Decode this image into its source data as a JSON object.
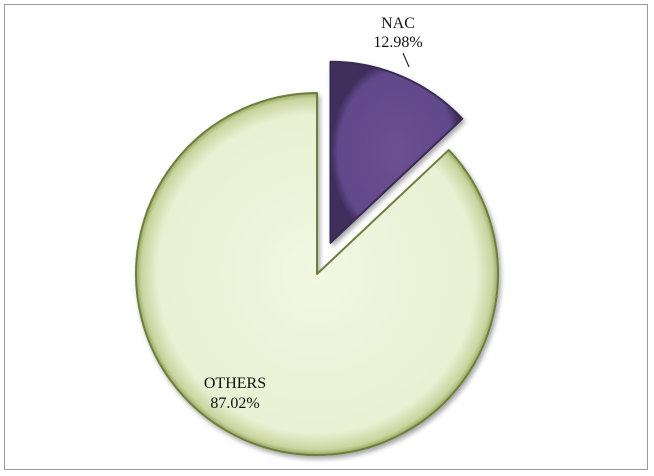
{
  "chart_data": {
    "type": "pie",
    "slices": [
      {
        "label": "NAC",
        "value_label": "12.98%",
        "value": 12.98,
        "color": "#634a85",
        "exploded": true
      },
      {
        "label": "OTHERS",
        "value_label": "87.02%",
        "value": 87.02,
        "color": "#ebf1d6",
        "exploded": false
      }
    ],
    "start_angle_deg": 0,
    "direction": "clockwise",
    "colors": {
      "edge": "#6e7f3c",
      "nac_edge": "#3b2a57",
      "frame": "#9a9a9a"
    }
  }
}
